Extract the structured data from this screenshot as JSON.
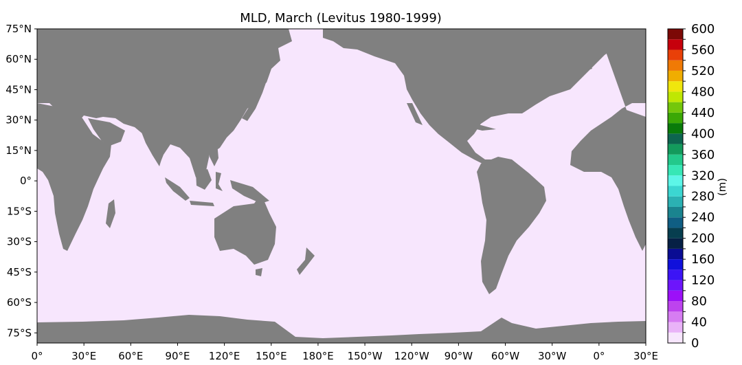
{
  "title": "MLD, March (Levitus 1980-1999)",
  "colorbar": {
    "unit_label": "(m)",
    "min": 0,
    "max": 600,
    "step": 20,
    "tick_labels": [
      "0",
      "40",
      "80",
      "120",
      "160",
      "200",
      "240",
      "280",
      "320",
      "360",
      "400",
      "440",
      "480",
      "520",
      "560",
      "600"
    ],
    "colors": [
      "#f7e6fd",
      "#e9b3f8",
      "#d67df2",
      "#bd43ee",
      "#9c10f8",
      "#6d15fb",
      "#3c14f5",
      "#1010db",
      "#0a0c93",
      "#062045",
      "#073e4f",
      "#0f5e83",
      "#1a848f",
      "#2bb1b3",
      "#3bd6d1",
      "#5cf6e8",
      "#37e7b6",
      "#23c98b",
      "#139a5c",
      "#0d654f",
      "#097b0a",
      "#3ba806",
      "#74c70b",
      "#bfe703",
      "#f0e60d",
      "#f0ad01",
      "#f07a05",
      "#e94008",
      "#c6000c",
      "#7c0906"
    ],
    "zero_color": "#f7e6fd"
  },
  "map": {
    "ocean_color": "#f7e6fd",
    "land_color": "#808080",
    "lon_range": [
      0,
      390
    ],
    "lat_range": [
      -80,
      75
    ],
    "lon_tick_labels": [
      "0°",
      "30°E",
      "60°E",
      "90°E",
      "120°E",
      "150°E",
      "180°E",
      "150°W",
      "120°W",
      "90°W",
      "60°W",
      "30°W",
      "0°",
      "30°E"
    ],
    "lat_tick_labels": [
      "75°N",
      "60°N",
      "45°N",
      "30°N",
      "15°N",
      "0°",
      "15°S",
      "30°S",
      "45°S",
      "60°S",
      "75°S"
    ]
  }
}
